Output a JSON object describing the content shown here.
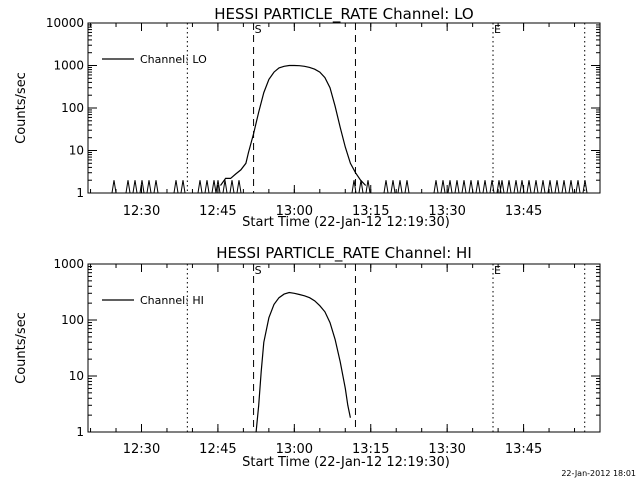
{
  "footer_timestamp": "22-Jan-2012 18:01",
  "chart_data": [
    {
      "type": "line",
      "title": "HESSI PARTICLE_RATE Channel: LO",
      "xlabel": "Start Time (22-Jan-12 12:19:30)",
      "ylabel": "Counts/sec",
      "yscale": "log",
      "ylim": [
        1,
        10000
      ],
      "ytick_labels": [
        "1",
        "10",
        "100",
        "1000",
        "10000"
      ],
      "xlim": [
        "12:19:30",
        "14:00:00"
      ],
      "xtick_labels": [
        "12:30",
        "12:45",
        "13:00",
        "13:15",
        "13:30",
        "13:45"
      ],
      "legend": {
        "position": "top-left",
        "entries": [
          "Channel: LO"
        ]
      },
      "markers": [
        {
          "label": "",
          "time": "12:19:30",
          "style": "dotted"
        },
        {
          "label": "",
          "time": "12:39:00",
          "style": "dotted"
        },
        {
          "label": "S",
          "time": "12:52:00",
          "style": "dashed"
        },
        {
          "label": "",
          "time": "13:12:00",
          "style": "dashed"
        },
        {
          "label": "E",
          "time": "13:39:00",
          "style": "dotted"
        },
        {
          "label": "",
          "time": "13:57:00",
          "style": "dotted"
        }
      ],
      "series": [
        {
          "name": "Channel: LO",
          "x": [
            "12:45:30",
            "12:46:30",
            "12:47:30",
            "12:48:30",
            "12:49:30",
            "12:50:30",
            "12:51:00",
            "12:52:00",
            "12:53:00",
            "12:54:00",
            "12:55:00",
            "12:56:00",
            "12:57:00",
            "12:58:00",
            "12:59:00",
            "13:00:00",
            "13:01:00",
            "13:02:00",
            "13:03:00",
            "13:04:00",
            "13:05:00",
            "13:06:00",
            "13:07:00",
            "13:08:00",
            "13:09:00",
            "13:10:00",
            "13:11:00",
            "13:12:00",
            "13:13:00",
            "13:14:00"
          ],
          "y": [
            1.5,
            2.2,
            2.2,
            2.8,
            3.5,
            5,
            9,
            25,
            80,
            230,
            470,
            700,
            880,
            960,
            1000,
            1000,
            990,
            960,
            900,
            820,
            700,
            520,
            300,
            110,
            35,
            12,
            5,
            3,
            2,
            1.5
          ]
        }
      ]
    },
    {
      "type": "line",
      "title": "HESSI PARTICLE_RATE Channel: HI",
      "xlabel": "Start Time (22-Jan-12 12:19:30)",
      "ylabel": "Counts/sec",
      "yscale": "log",
      "ylim": [
        1,
        1000
      ],
      "ytick_labels": [
        "1",
        "10",
        "100",
        "1000"
      ],
      "xlim": [
        "12:19:30",
        "14:00:00"
      ],
      "xtick_labels": [
        "12:30",
        "12:45",
        "13:00",
        "13:15",
        "13:30",
        "13:45"
      ],
      "legend": {
        "position": "top-left",
        "entries": [
          "Channel: HI"
        ]
      },
      "markers": [
        {
          "label": "",
          "time": "12:19:30",
          "style": "dotted"
        },
        {
          "label": "",
          "time": "12:39:00",
          "style": "dotted"
        },
        {
          "label": "S",
          "time": "12:52:00",
          "style": "dashed"
        },
        {
          "label": "",
          "time": "13:12:00",
          "style": "dashed"
        },
        {
          "label": "E",
          "time": "13:39:00",
          "style": "dotted"
        },
        {
          "label": "",
          "time": "13:57:00",
          "style": "dotted"
        }
      ],
      "series": [
        {
          "name": "Channel: HI",
          "x": [
            "12:52:30",
            "12:53:00",
            "12:53:30",
            "12:54:00",
            "12:55:00",
            "12:56:00",
            "12:57:00",
            "12:58:00",
            "12:59:00",
            "13:00:00",
            "13:01:00",
            "13:02:00",
            "13:03:00",
            "13:04:00",
            "13:05:00",
            "13:06:00",
            "13:07:00",
            "13:08:00",
            "13:09:00",
            "13:10:00",
            "13:10:30",
            "13:11:00"
          ],
          "y": [
            1,
            3,
            12,
            40,
            110,
            190,
            250,
            290,
            310,
            300,
            285,
            270,
            250,
            220,
            180,
            140,
            90,
            45,
            18,
            6,
            3,
            1.8
          ]
        }
      ]
    }
  ]
}
